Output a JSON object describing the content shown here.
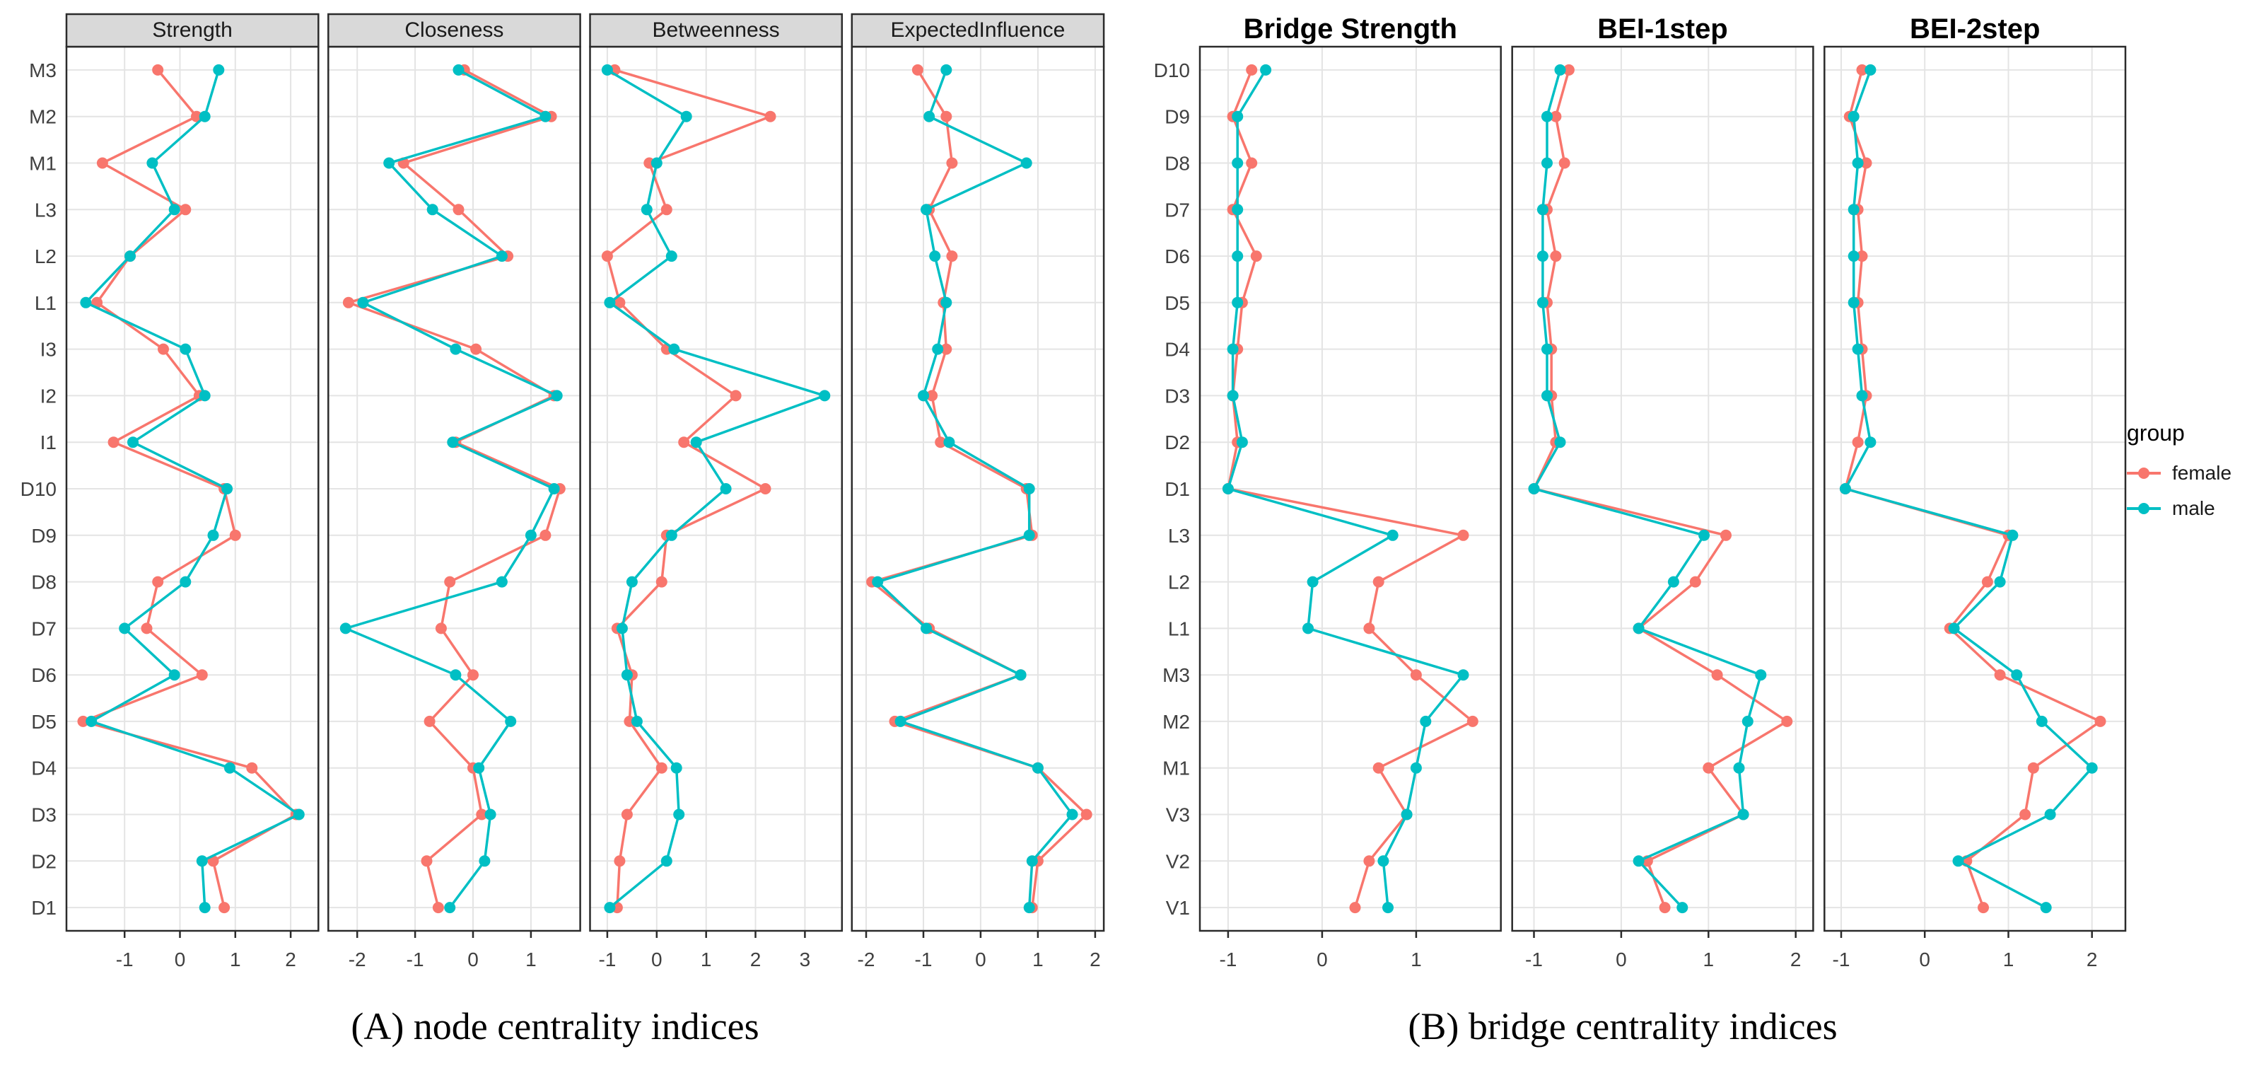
{
  "colors": {
    "female": "#F8766D",
    "male": "#00BFC4",
    "grid": "#E4E4E4",
    "panel_border": "#2B2B2B",
    "strip_bg": "#D9D9D9",
    "axis_text": "#404040"
  },
  "legend": {
    "title": "group",
    "items": [
      {
        "label": "female",
        "color": "#F8766D"
      },
      {
        "label": "male",
        "color": "#00BFC4"
      }
    ]
  },
  "captions": {
    "a": "(A) node centrality indices",
    "b": "(B) bridge centrality indices"
  },
  "chart_data": {
    "type": "line",
    "description": "Dot-and-line centrality plots (standardized z-scores) for female vs male networks",
    "legend_position": "right",
    "groups": [
      {
        "id": "A",
        "header_style": "strip",
        "caption": "(A) node centrality indices",
        "categories": [
          "M3",
          "M2",
          "M1",
          "L3",
          "L2",
          "L1",
          "I3",
          "I2",
          "I1",
          "D10",
          "D9",
          "D8",
          "D7",
          "D6",
          "D5",
          "D4",
          "D3",
          "D2",
          "D1"
        ],
        "panels": [
          {
            "title": "Strength",
            "xlim": [
              -2.05,
              2.5
            ],
            "xticks": [
              -1,
              0,
              1,
              2
            ],
            "series": [
              {
                "name": "female",
                "values": [
                  -0.4,
                  0.3,
                  -1.4,
                  0.1,
                  -0.9,
                  -1.5,
                  -0.3,
                  0.35,
                  -1.2,
                  0.8,
                  1.0,
                  -0.4,
                  -0.6,
                  0.4,
                  -1.75,
                  1.3,
                  2.1,
                  0.6,
                  0.8
                ]
              },
              {
                "name": "male",
                "values": [
                  0.7,
                  0.45,
                  -0.5,
                  -0.1,
                  -0.9,
                  -1.7,
                  0.1,
                  0.45,
                  -0.85,
                  0.85,
                  0.6,
                  0.1,
                  -1.0,
                  -0.1,
                  -1.6,
                  0.9,
                  2.15,
                  0.4,
                  0.45
                ]
              }
            ]
          },
          {
            "title": "Closeness",
            "xlim": [
              -2.5,
              1.85
            ],
            "xticks": [
              -2,
              -1,
              0,
              1
            ],
            "series": [
              {
                "name": "female",
                "values": [
                  -0.15,
                  1.35,
                  -1.2,
                  -0.25,
                  0.6,
                  -2.15,
                  0.05,
                  1.4,
                  -0.3,
                  1.5,
                  1.25,
                  -0.4,
                  -0.55,
                  0.0,
                  -0.75,
                  0.0,
                  0.15,
                  -0.8,
                  -0.6
                ]
              },
              {
                "name": "male",
                "values": [
                  -0.25,
                  1.25,
                  -1.45,
                  -0.7,
                  0.5,
                  -1.9,
                  -0.3,
                  1.45,
                  -0.35,
                  1.4,
                  1.0,
                  0.5,
                  -2.2,
                  -0.3,
                  0.65,
                  0.1,
                  0.3,
                  0.2,
                  -0.4
                ]
              }
            ]
          },
          {
            "title": "Betweenness",
            "xlim": [
              -1.35,
              3.75
            ],
            "xticks": [
              -1,
              0,
              1,
              2,
              3
            ],
            "series": [
              {
                "name": "female",
                "values": [
                  -0.85,
                  2.3,
                  -0.15,
                  0.2,
                  -1.0,
                  -0.75,
                  0.2,
                  1.6,
                  0.55,
                  2.2,
                  0.2,
                  0.1,
                  -0.8,
                  -0.5,
                  -0.55,
                  0.1,
                  -0.6,
                  -0.75,
                  -0.8
                ]
              },
              {
                "name": "male",
                "values": [
                  -1.0,
                  0.6,
                  0.0,
                  -0.2,
                  0.3,
                  -0.95,
                  0.35,
                  3.4,
                  0.8,
                  1.4,
                  0.3,
                  -0.5,
                  -0.7,
                  -0.6,
                  -0.4,
                  0.4,
                  0.45,
                  0.2,
                  -0.95
                ]
              }
            ]
          },
          {
            "title": "ExpectedInfluence",
            "xlim": [
              -2.25,
              2.15
            ],
            "xticks": [
              -2,
              -1,
              0,
              1,
              2
            ],
            "series": [
              {
                "name": "female",
                "values": [
                  -1.1,
                  -0.6,
                  -0.5,
                  -0.9,
                  -0.5,
                  -0.65,
                  -0.6,
                  -0.85,
                  -0.7,
                  0.8,
                  0.9,
                  -1.9,
                  -0.9,
                  0.7,
                  -1.5,
                  1.0,
                  1.85,
                  1.0,
                  0.9
                ]
              },
              {
                "name": "male",
                "values": [
                  -0.6,
                  -0.9,
                  0.8,
                  -0.95,
                  -0.8,
                  -0.6,
                  -0.75,
                  -1.0,
                  -0.55,
                  0.85,
                  0.85,
                  -1.8,
                  -0.95,
                  0.7,
                  -1.4,
                  1.0,
                  1.6,
                  0.9,
                  0.85
                ]
              }
            ]
          }
        ]
      },
      {
        "id": "B",
        "header_style": "title",
        "caption": "(B) bridge centrality indices",
        "categories": [
          "D10",
          "D9",
          "D8",
          "D7",
          "D6",
          "D5",
          "D4",
          "D3",
          "D2",
          "D1",
          "L3",
          "L2",
          "L1",
          "M3",
          "M2",
          "M1",
          "V3",
          "V2",
          "V1"
        ],
        "panels": [
          {
            "title": "Bridge Strength",
            "xlim": [
              -1.3,
              1.9
            ],
            "xticks": [
              -1,
              0,
              1
            ],
            "series": [
              {
                "name": "female",
                "values": [
                  -0.75,
                  -0.95,
                  -0.75,
                  -0.95,
                  -0.7,
                  -0.85,
                  -0.9,
                  -0.95,
                  -0.9,
                  -1.0,
                  1.5,
                  0.6,
                  0.5,
                  1.0,
                  1.6,
                  0.6,
                  0.9,
                  0.5,
                  0.35
                ]
              },
              {
                "name": "male",
                "values": [
                  -0.6,
                  -0.9,
                  -0.9,
                  -0.9,
                  -0.9,
                  -0.9,
                  -0.95,
                  -0.95,
                  -0.85,
                  -1.0,
                  0.75,
                  -0.1,
                  -0.15,
                  1.5,
                  1.1,
                  1.0,
                  0.9,
                  0.65,
                  0.7
                ]
              }
            ]
          },
          {
            "title": "BEI-1step",
            "xlim": [
              -1.25,
              2.2
            ],
            "xticks": [
              -1,
              0,
              1,
              2
            ],
            "series": [
              {
                "name": "female",
                "values": [
                  -0.6,
                  -0.75,
                  -0.65,
                  -0.85,
                  -0.75,
                  -0.85,
                  -0.8,
                  -0.8,
                  -0.75,
                  -1.0,
                  1.2,
                  0.85,
                  0.2,
                  1.1,
                  1.9,
                  1.0,
                  1.4,
                  0.3,
                  0.5
                ]
              },
              {
                "name": "male",
                "values": [
                  -0.7,
                  -0.85,
                  -0.85,
                  -0.9,
                  -0.9,
                  -0.9,
                  -0.85,
                  -0.85,
                  -0.7,
                  -1.0,
                  0.95,
                  0.6,
                  0.2,
                  1.6,
                  1.45,
                  1.35,
                  1.4,
                  0.2,
                  0.7
                ]
              }
            ]
          },
          {
            "title": "BEI-2step",
            "xlim": [
              -1.2,
              2.4
            ],
            "xticks": [
              -1,
              0,
              1,
              2
            ],
            "series": [
              {
                "name": "female",
                "values": [
                  -0.75,
                  -0.9,
                  -0.7,
                  -0.8,
                  -0.75,
                  -0.8,
                  -0.75,
                  -0.7,
                  -0.8,
                  -0.95,
                  1.0,
                  0.75,
                  0.3,
                  0.9,
                  2.1,
                  1.3,
                  1.2,
                  0.5,
                  0.7
                ]
              },
              {
                "name": "male",
                "values": [
                  -0.65,
                  -0.85,
                  -0.8,
                  -0.85,
                  -0.85,
                  -0.85,
                  -0.8,
                  -0.75,
                  -0.65,
                  -0.95,
                  1.05,
                  0.9,
                  0.35,
                  1.1,
                  1.4,
                  2.0,
                  1.5,
                  0.4,
                  1.45
                ]
              }
            ]
          }
        ]
      }
    ]
  }
}
